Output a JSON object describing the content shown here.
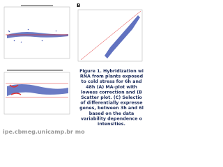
{
  "panel_label": "B",
  "caption": [
    "Figure 1. Hybridization wi",
    "RNA from plants exposed",
    "to cold stress for 6h and",
    "48h (A) MA-plot with",
    "lowess correction and (B",
    "Scatter plot. (C) Selectio",
    "of differentially expresse",
    "genes, between 3h and 6l",
    "based on the data",
    "variability dependence o",
    "intensities."
  ],
  "watermark": "ipe.cbmeg.unicamp.br mo"
}
